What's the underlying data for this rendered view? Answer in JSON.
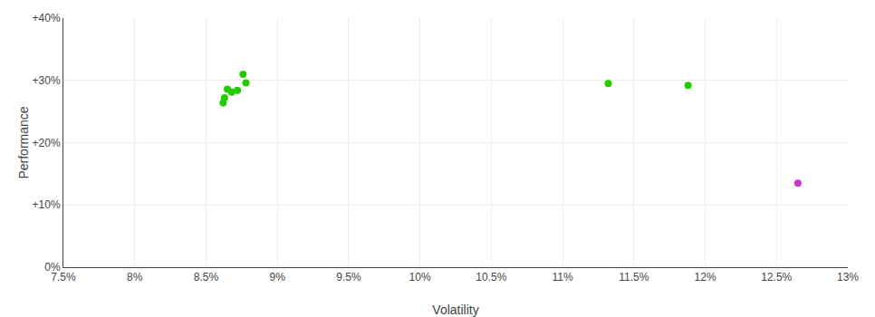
{
  "chart_data": {
    "type": "scatter",
    "xlabel": "Volatility",
    "ylabel": "Performance",
    "xlim": [
      0.075,
      0.13
    ],
    "ylim": [
      0.0,
      0.4
    ],
    "xticks": [
      {
        "value": 0.075,
        "label": "7.5%"
      },
      {
        "value": 0.08,
        "label": "8%"
      },
      {
        "value": 0.085,
        "label": "8.5%"
      },
      {
        "value": 0.09,
        "label": "9%"
      },
      {
        "value": 0.095,
        "label": "9.5%"
      },
      {
        "value": 0.1,
        "label": "10%"
      },
      {
        "value": 0.105,
        "label": "10.5%"
      },
      {
        "value": 0.11,
        "label": "11%"
      },
      {
        "value": 0.115,
        "label": "11.5%"
      },
      {
        "value": 0.12,
        "label": "12%"
      },
      {
        "value": 0.125,
        "label": "12.5%"
      },
      {
        "value": 0.13,
        "label": "13%"
      }
    ],
    "yticks": [
      {
        "value": 0.0,
        "label": "0%"
      },
      {
        "value": 0.1,
        "label": "+10%"
      },
      {
        "value": 0.2,
        "label": "+20%"
      },
      {
        "value": 0.3,
        "label": "+30%"
      },
      {
        "value": 0.4,
        "label": "+40%"
      }
    ],
    "grid": true,
    "series": [
      {
        "color": "#22cc00",
        "x": [
          0.0876,
          0.0878,
          0.0865,
          0.0872,
          0.0868,
          0.0863,
          0.0862,
          0.1132,
          0.1188
        ],
        "values": [
          0.31,
          0.296,
          0.286,
          0.284,
          0.281,
          0.272,
          0.264,
          0.295,
          0.292
        ]
      },
      {
        "color": "#cc33cc",
        "x": [
          0.1265
        ],
        "values": [
          0.135
        ]
      }
    ]
  }
}
